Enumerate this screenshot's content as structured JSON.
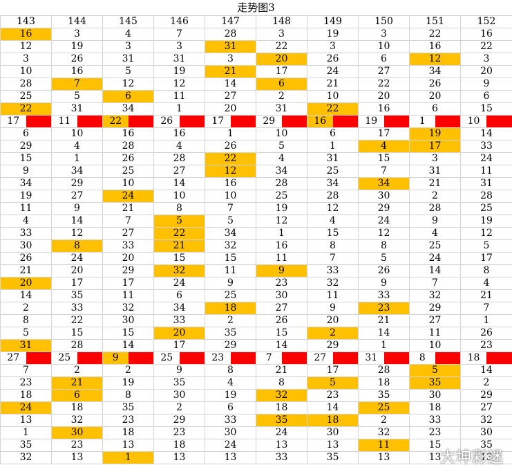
{
  "title": "走势图3",
  "colors": {
    "highlight": "#ffc000",
    "separator": "#ff0000",
    "grid": "#d4d4d4"
  },
  "headers": [
    "143",
    "144",
    "145",
    "146",
    "147",
    "148",
    "149",
    "150",
    "151",
    "152"
  ],
  "rows": [
    [
      "16",
      "3",
      "4",
      "7",
      "28",
      "3",
      "19",
      "3",
      "22",
      "16"
    ],
    [
      "12",
      "19",
      "3",
      "3",
      "31",
      "22",
      "3",
      "10",
      "16",
      "22"
    ],
    [
      "3",
      "26",
      "31",
      "31",
      "3",
      "20",
      "26",
      "6",
      "12",
      "3"
    ],
    [
      "10",
      "16",
      "5",
      "19",
      "21",
      "17",
      "24",
      "27",
      "34",
      "20"
    ],
    [
      "28",
      "7",
      "12",
      "12",
      "14",
      "6",
      "21",
      "22",
      "26",
      "9"
    ],
    [
      "25",
      "5",
      "6",
      "11",
      "27",
      "2",
      "10",
      "20",
      "20",
      "6"
    ],
    [
      "22",
      "31",
      "34",
      "1",
      "20",
      "31",
      "22",
      "16",
      "6",
      "15"
    ],
    [
      "17",
      "11",
      "22",
      "26",
      "17",
      "29",
      "16",
      "19",
      "1",
      "10"
    ],
    [
      "6",
      "10",
      "16",
      "16",
      "1",
      "10",
      "6",
      "17",
      "19",
      "14"
    ],
    [
      "29",
      "4",
      "28",
      "4",
      "26",
      "5",
      "1",
      "4",
      "17",
      "33"
    ],
    [
      "15",
      "1",
      "26",
      "28",
      "22",
      "4",
      "31",
      "15",
      "3",
      "24"
    ],
    [
      "9",
      "34",
      "25",
      "27",
      "12",
      "34",
      "25",
      "7",
      "31",
      "11"
    ],
    [
      "34",
      "29",
      "10",
      "14",
      "16",
      "28",
      "34",
      "34",
      "21",
      "31"
    ],
    [
      "19",
      "27",
      "24",
      "10",
      "10",
      "25",
      "28",
      "30",
      "2",
      "28"
    ],
    [
      "11",
      "9",
      "21",
      "8",
      "7",
      "19",
      "12",
      "29",
      "28",
      "25"
    ],
    [
      "4",
      "14",
      "7",
      "5",
      "5",
      "12",
      "4",
      "24",
      "9",
      "19"
    ],
    [
      "33",
      "12",
      "27",
      "22",
      "34",
      "1",
      "15",
      "12",
      "4",
      "12"
    ],
    [
      "30",
      "8",
      "33",
      "21",
      "32",
      "16",
      "8",
      "8",
      "25",
      "5"
    ],
    [
      "26",
      "24",
      "20",
      "15",
      "15",
      "11",
      "7",
      "5",
      "24",
      "17"
    ],
    [
      "21",
      "20",
      "29",
      "32",
      "11",
      "9",
      "33",
      "26",
      "14",
      "8"
    ],
    [
      "20",
      "17",
      "17",
      "24",
      "9",
      "23",
      "32",
      "9",
      "7",
      "4"
    ],
    [
      "14",
      "35",
      "11",
      "6",
      "25",
      "30",
      "11",
      "33",
      "32",
      "21"
    ],
    [
      "2",
      "33",
      "32",
      "34",
      "18",
      "27",
      "9",
      "23",
      "29",
      "7"
    ],
    [
      "8",
      "22",
      "30",
      "33",
      "2",
      "26",
      "20",
      "21",
      "27",
      "1"
    ],
    [
      "5",
      "15",
      "15",
      "20",
      "35",
      "15",
      "2",
      "14",
      "11",
      "26"
    ],
    [
      "31",
      "28",
      "14",
      "17",
      "29",
      "14",
      "29",
      "1",
      "10",
      "23"
    ],
    [
      "27",
      "25",
      "9",
      "25",
      "23",
      "7",
      "27",
      "31",
      "8",
      "18"
    ],
    [
      "7",
      "2",
      "2",
      "9",
      "8",
      "21",
      "17",
      "28",
      "5",
      "14"
    ],
    [
      "23",
      "21",
      "19",
      "35",
      "4",
      "8",
      "5",
      "18",
      "35",
      "2"
    ],
    [
      "18",
      "6",
      "8",
      "30",
      "19",
      "32",
      "23",
      "35",
      "30",
      "29"
    ],
    [
      "24",
      "18",
      "35",
      "2",
      "6",
      "18",
      "14",
      "25",
      "18",
      "27"
    ],
    [
      "13",
      "32",
      "23",
      "29",
      "33",
      "35",
      "18",
      "2",
      "33",
      "32"
    ],
    [
      "1",
      "30",
      "18",
      "23",
      "30",
      "24",
      "30",
      "32",
      "23",
      "30"
    ],
    [
      "35",
      "23",
      "13",
      "18",
      "24",
      "13",
      "13",
      "11",
      "15",
      "35"
    ],
    [
      "32",
      "13",
      "1",
      "13",
      "13",
      "33",
      "35",
      "13",
      "13",
      "13"
    ]
  ],
  "highlights": [
    [
      0,
      0
    ],
    [
      1,
      4
    ],
    [
      2,
      5
    ],
    [
      2,
      8
    ],
    [
      3,
      4
    ],
    [
      4,
      1
    ],
    [
      4,
      5
    ],
    [
      5,
      2
    ],
    [
      6,
      0
    ],
    [
      6,
      6
    ],
    [
      7,
      2
    ],
    [
      7,
      6
    ],
    [
      8,
      8
    ],
    [
      9,
      7
    ],
    [
      9,
      8
    ],
    [
      10,
      4
    ],
    [
      11,
      4
    ],
    [
      12,
      7
    ],
    [
      13,
      2
    ],
    [
      15,
      3
    ],
    [
      16,
      3
    ],
    [
      17,
      1
    ],
    [
      17,
      3
    ],
    [
      19,
      3
    ],
    [
      19,
      5
    ],
    [
      20,
      0
    ],
    [
      22,
      4
    ],
    [
      22,
      7
    ],
    [
      24,
      3
    ],
    [
      24,
      6
    ],
    [
      25,
      0
    ],
    [
      26,
      2
    ],
    [
      27,
      8
    ],
    [
      28,
      1
    ],
    [
      28,
      6
    ],
    [
      28,
      8
    ],
    [
      29,
      1
    ],
    [
      29,
      5
    ],
    [
      30,
      0
    ],
    [
      30,
      7
    ],
    [
      31,
      5
    ],
    [
      31,
      6
    ],
    [
      32,
      1
    ],
    [
      33,
      7
    ],
    [
      34,
      2
    ]
  ],
  "separator_rows": [
    7,
    26
  ],
  "watermark": "大坤彩迷"
}
